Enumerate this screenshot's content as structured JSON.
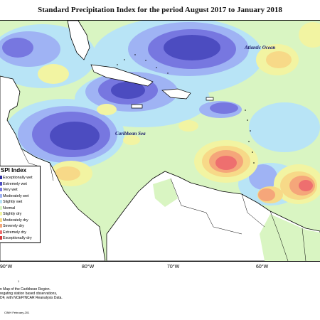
{
  "title": "Standard Precipitation Index for the period August 2017 to January 2018",
  "labels": {
    "atlantic": "Atlantic Ocean",
    "caribbean": "Caribbean Sea"
  },
  "legend": {
    "title": "SPI Index",
    "items": [
      {
        "label": "Exceptionally wet",
        "color": "#2b2b9e"
      },
      {
        "label": "Extremely wet",
        "color": "#4c4cc0"
      },
      {
        "label": "Very wet",
        "color": "#7777e0"
      },
      {
        "label": "Moderately wet",
        "color": "#9fb3f4"
      },
      {
        "label": "Slightly wet",
        "color": "#b8e4f6"
      },
      {
        "label": "Normal",
        "color": "#d9f5c2"
      },
      {
        "label": "Slightly dry",
        "color": "#f2f4a2"
      },
      {
        "label": "Moderately dry",
        "color": "#f7d988"
      },
      {
        "label": "Severely dry",
        "color": "#f5a67a"
      },
      {
        "label": "Extremely dry",
        "color": "#ee6f6f"
      },
      {
        "label": "Exceptionally dry",
        "color": "#d43a3a"
      }
    ]
  },
  "axis": {
    "ticks": [
      "90°W",
      "80°W",
      "70°W",
      "60°W"
    ],
    "marker": "1"
  },
  "caption": [
    "n Map of the Caribbean Region.",
    "regating station based observations,",
    "DF, with NCEP/NCAR Reanalysis Data."
  ],
  "credit": "CIMH February-201"
}
